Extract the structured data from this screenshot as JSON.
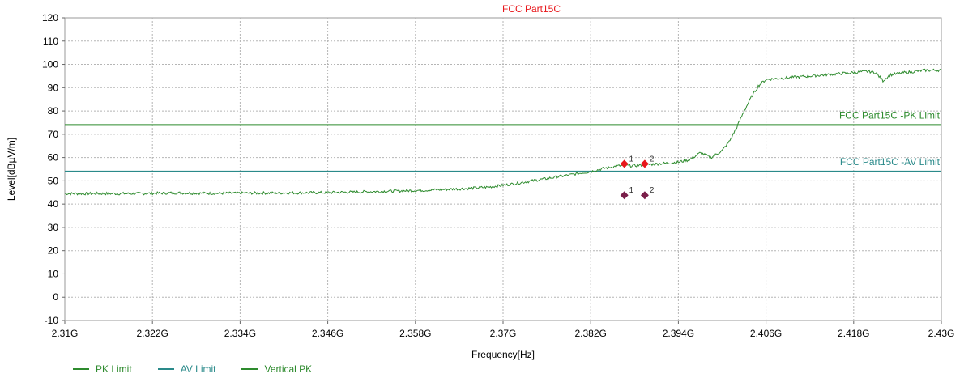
{
  "chart_data": {
    "type": "line",
    "title": "FCC Part15C",
    "xlabel": "Frequency[Hz]",
    "ylabel": "Level[dBµV/m]",
    "xlim": [
      2.31,
      2.43
    ],
    "ylim": [
      -10,
      120
    ],
    "x_ticks": [
      "2.31G",
      "2.322G",
      "2.334G",
      "2.346G",
      "2.358G",
      "2.37G",
      "2.382G",
      "2.394G",
      "2.406G",
      "2.418G",
      "2.43G"
    ],
    "y_ticks": [
      "120",
      "110",
      "100",
      "90",
      "80",
      "70",
      "60",
      "50",
      "40",
      "30",
      "20",
      "10",
      "0",
      "-10"
    ],
    "grid": true,
    "limit_lines": [
      {
        "name": "FCC Part15C -PK Limit",
        "value": 74,
        "color": "#2e8b2e"
      },
      {
        "name": "FCC Part15C -AV Limit",
        "value": 54,
        "color": "#2a8a8a"
      }
    ],
    "series": [
      {
        "name": "Vertical PK",
        "color": "#2e8b2e",
        "x": [
          2.31,
          2.315,
          2.32,
          2.325,
          2.33,
          2.335,
          2.34,
          2.345,
          2.35,
          2.355,
          2.36,
          2.365,
          2.368,
          2.371,
          2.374,
          2.377,
          2.38,
          2.382,
          2.384,
          2.386,
          2.388,
          2.39,
          2.392,
          2.394,
          2.3955,
          2.397,
          2.3985,
          2.4,
          2.401,
          2.402,
          2.403,
          2.404,
          2.405,
          2.406,
          2.41,
          2.414,
          2.418,
          2.42,
          2.421,
          2.422,
          2.423,
          2.425,
          2.428,
          2.43
        ],
        "y": [
          44.5,
          44.5,
          44.5,
          44.8,
          44.6,
          44.7,
          44.8,
          44.9,
          45.2,
          45.6,
          46,
          46.7,
          47.3,
          48.5,
          50,
          51.5,
          53,
          54,
          55.5,
          56.5,
          56.5,
          57,
          57.5,
          58,
          59,
          62,
          60,
          63,
          67,
          73,
          80,
          86,
          91,
          93.5,
          94.5,
          95.5,
          96.5,
          97,
          96.5,
          93,
          95.5,
          96.5,
          97.5,
          97.5
        ]
      }
    ],
    "markers": [
      {
        "label": "1",
        "x": 2.3866,
        "y": 57.3,
        "color": "#e8171b"
      },
      {
        "label": "2",
        "x": 2.3894,
        "y": 57.3,
        "color": "#e8171b"
      },
      {
        "label": "1",
        "x": 2.3866,
        "y": 43.8,
        "color": "#7a1f4a"
      },
      {
        "label": "2",
        "x": 2.3894,
        "y": 43.8,
        "color": "#7a1f4a"
      }
    ],
    "title_color": "#e8171b"
  },
  "legend": [
    {
      "label": "PK Limit",
      "color": "#2e8b2e"
    },
    {
      "label": "AV Limit",
      "color": "#2a8a8a"
    },
    {
      "label": "Vertical PK",
      "color": "#2e8b2e"
    }
  ]
}
